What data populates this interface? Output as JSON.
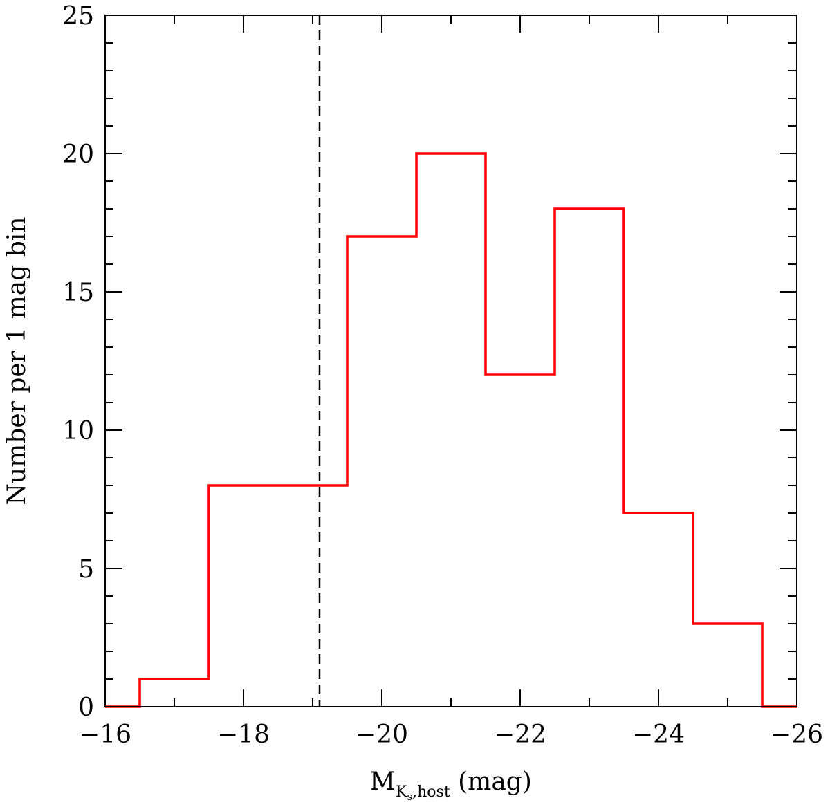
{
  "chart_data": {
    "type": "bar",
    "style": "step-histogram",
    "title": "",
    "bin_width": 1,
    "bin_edges": [
      -15.5,
      -16.5,
      -17.5,
      -18.5,
      -19.5,
      -20.5,
      -21.5,
      -22.5,
      -23.5,
      -24.5,
      -25.5,
      -26.5
    ],
    "values": [
      0,
      1,
      8,
      8,
      17,
      20,
      12,
      18,
      7,
      3,
      0
    ],
    "xlim": [
      -16,
      -26
    ],
    "ylim": [
      0,
      25
    ],
    "x_ticks": [
      -16,
      -18,
      -20,
      -22,
      -24,
      -26
    ],
    "x_tick_labels": [
      "−16",
      "−18",
      "−20",
      "−22",
      "−24",
      "−26"
    ],
    "y_ticks": [
      0,
      5,
      10,
      15,
      20,
      25
    ],
    "y_tick_labels": [
      "0",
      "5",
      "10",
      "15",
      "20",
      "25"
    ],
    "xlabel": {
      "main": "M",
      "subscript": "K",
      "subsubscript": "s",
      "subscript_rest": ",host",
      "unit": " (mag)"
    },
    "ylabel": "Number per 1 mag bin",
    "vline_x": -19.1,
    "grid": false,
    "legend": "none",
    "colors": {
      "histogram": "#ff0000",
      "vline": "#000000",
      "axes": "#000000"
    }
  }
}
